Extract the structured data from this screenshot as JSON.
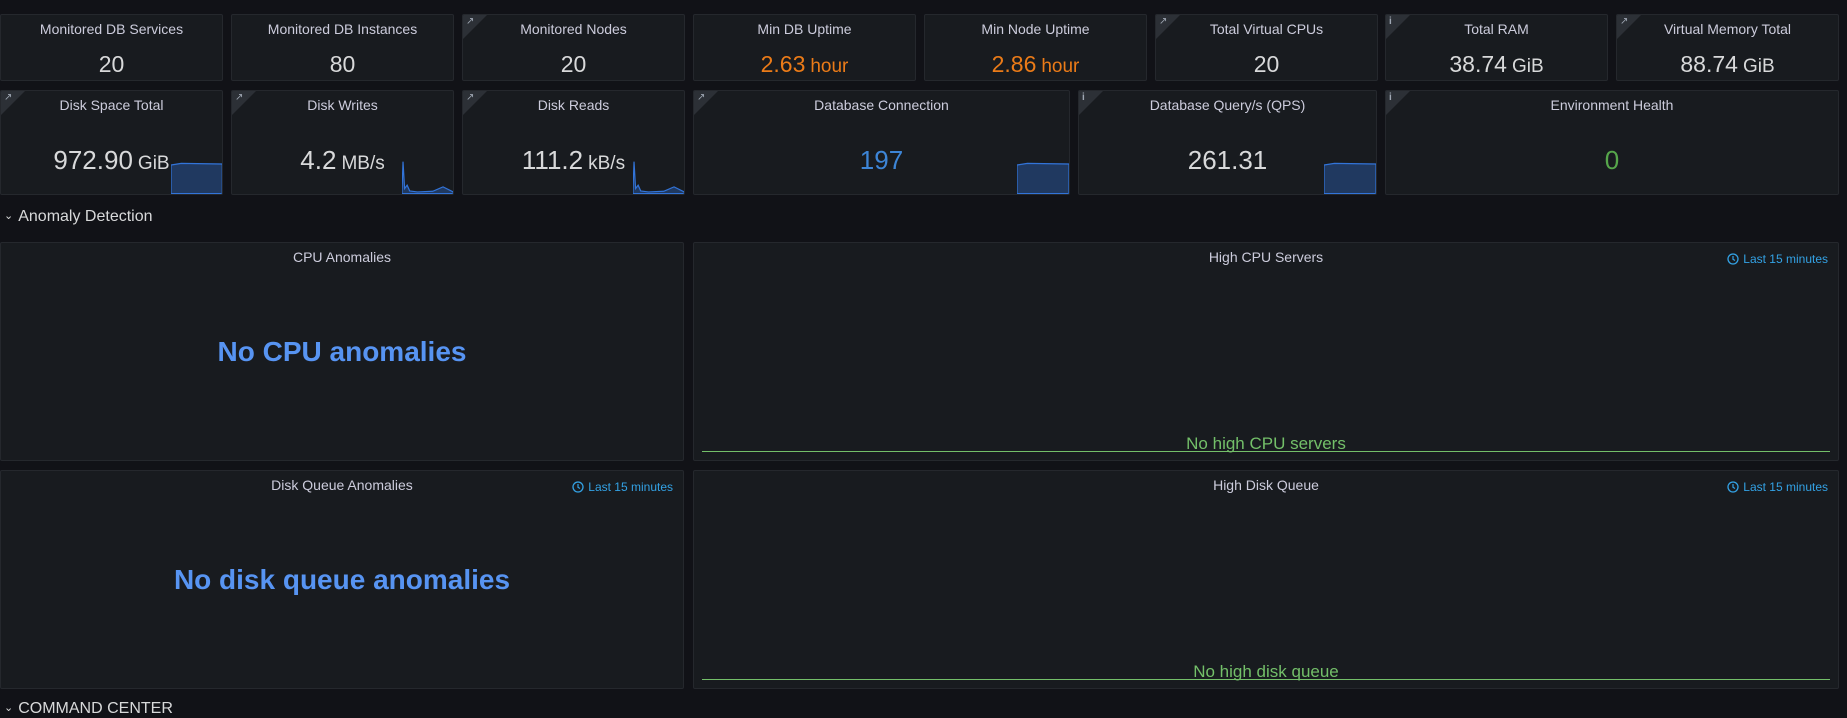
{
  "stat_rows": [
    [
      {
        "title": "Monitored DB Services",
        "value": "20",
        "color": "#d8d9da"
      },
      {
        "title": "Monitored DB Instances",
        "value": "80",
        "color": "#d8d9da"
      },
      {
        "title": "Monitored Nodes",
        "value": "20",
        "color": "#d8d9da",
        "corner": "link"
      },
      {
        "title": "Min DB Uptime",
        "value": "2.63",
        "unit": "hour",
        "color": "#eb7b18"
      },
      {
        "title": "Min Node Uptime",
        "value": "2.86",
        "unit": "hour",
        "color": "#eb7b18"
      },
      {
        "title": "Total Virtual CPUs",
        "value": "20",
        "color": "#d8d9da",
        "corner": "link"
      },
      {
        "title": "Total RAM",
        "value": "38.74",
        "unit": "GiB",
        "color": "#d8d9da",
        "corner": "info"
      },
      {
        "title": "Virtual Memory Total",
        "value": "88.74",
        "unit": "GiB",
        "color": "#d8d9da",
        "corner": "link"
      }
    ],
    [
      {
        "title": "Disk Space Total",
        "value": "972.90",
        "unit": "GiB",
        "color": "#d8d9da",
        "corner": "link",
        "sparkline": "flat"
      },
      {
        "title": "Disk Writes",
        "value": "4.2",
        "unit": "MB/s",
        "color": "#d8d9da",
        "corner": "link",
        "sparkline": "spike"
      },
      {
        "title": "Disk Reads",
        "value": "111.2",
        "unit": "kB/s",
        "color": "#d8d9da",
        "corner": "link",
        "sparkline": "spike"
      },
      {
        "title": "Database Connection",
        "value": "197",
        "color": "#3d85d6",
        "corner": "link",
        "sparkline": "flat"
      },
      {
        "title": "Database Query/s (QPS)",
        "value": "261.31",
        "color": "#d8d9da",
        "corner": "info",
        "sparkline": "flat"
      },
      {
        "title": "Environment Health",
        "value": "0",
        "color": "#56a64b",
        "corner": "info"
      }
    ]
  ],
  "sections": [
    {
      "title": "Anomaly Detection",
      "panels": [
        {
          "title": "CPU Anomalies",
          "message": "No CPU anomalies",
          "style": "big"
        },
        {
          "title": "High CPU Servers",
          "time_range": "Last 15 minutes",
          "message": "No high CPU servers",
          "style": "bottom"
        },
        {
          "title": "Disk Queue Anomalies",
          "time_range": "Last 15 minutes",
          "message": "No disk queue anomalies",
          "style": "big"
        },
        {
          "title": "High Disk Queue",
          "time_range": "Last 15 minutes",
          "message": "No high disk queue",
          "style": "bottom"
        }
      ]
    },
    {
      "title": "COMMAND CENTER",
      "panels": []
    }
  ]
}
